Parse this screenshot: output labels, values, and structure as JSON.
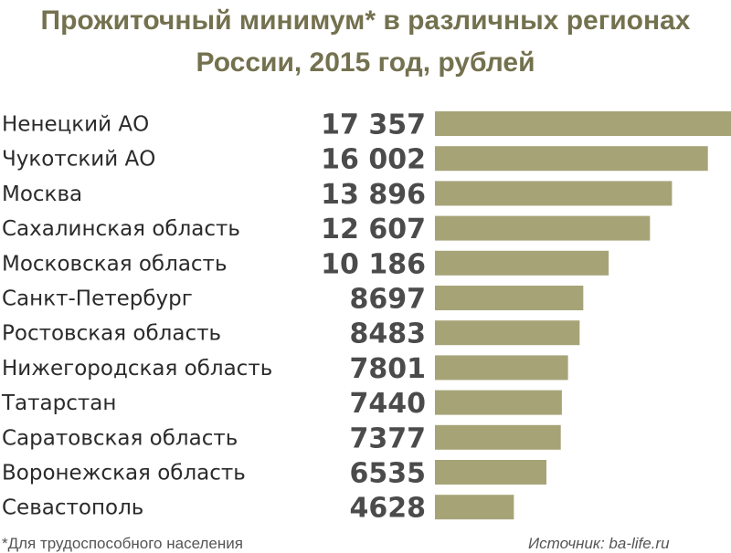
{
  "chart_data": {
    "type": "bar",
    "orientation": "horizontal",
    "title": "Прожиточный минимум* в различных регионах России, 2015 год, рублей",
    "title_lines": [
      "Прожиточный минимум* в различных регионах",
      "России, 2015 год, рублей"
    ],
    "categories": [
      "Ненецкий АО",
      "Чукотский АО",
      "Москва",
      "Сахалинская область",
      "Московская область",
      "Санкт-Петербург",
      "Ростовская область",
      "Нижегородская область",
      "Татарстан",
      "Саратовская область",
      "Воронежская область",
      "Севастополь"
    ],
    "values": [
      17357,
      16002,
      13896,
      12607,
      10186,
      8697,
      8483,
      7801,
      7440,
      7377,
      6535,
      4628
    ],
    "value_labels": [
      "17 357",
      "16 002",
      "13 896",
      "12 607",
      "10 186",
      "8697",
      "8483",
      "7801",
      "7440",
      "7377",
      "6535",
      "4628"
    ],
    "xlabel": "",
    "ylabel": "",
    "grid": false,
    "bar_color": "#a6a477",
    "footnote": "*Для трудоспособного населения",
    "source": "Источник: ba-life.ru"
  }
}
